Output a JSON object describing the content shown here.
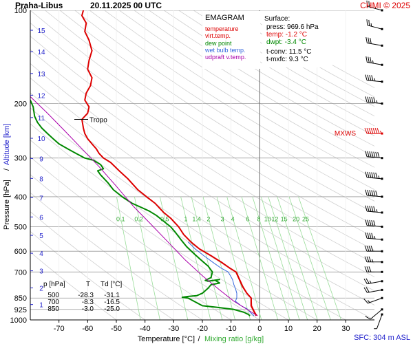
{
  "header": {
    "station": "Praha-Libus",
    "datetime": "20.11.2025 00 UTC",
    "credit": "CHMI © 2025"
  },
  "footer": {
    "sfc": "SFC: 304 m ASL"
  },
  "chart_data": {
    "type": "line",
    "title": "EMAGRAM",
    "xlabel": "Temperature [°C]",
    "xlabel_sep": "/",
    "xlabel2": "Mixing ratio [g/kg]",
    "ylabel": "Pressure [hPa]",
    "ylabel_sep": "/",
    "ylabel2": "Altitude [km]",
    "y_scale": "log",
    "xlim": [
      -80,
      40
    ],
    "ylim": [
      1000,
      100
    ],
    "x_ticks": [
      -70,
      -60,
      -50,
      -40,
      -30,
      -20,
      -10,
      0,
      10,
      20,
      30
    ],
    "pressure_ticks": [
      100,
      200,
      300,
      400,
      500,
      600,
      700,
      850,
      925,
      1000
    ],
    "altitude_ticks": [
      {
        "km": 1,
        "p": 892
      },
      {
        "km": 2,
        "p": 788
      },
      {
        "km": 3,
        "p": 694
      },
      {
        "km": 4,
        "p": 609
      },
      {
        "km": 5,
        "p": 533
      },
      {
        "km": 6,
        "p": 465
      },
      {
        "km": 7,
        "p": 403
      },
      {
        "km": 8,
        "p": 349
      },
      {
        "km": 9,
        "p": 301
      },
      {
        "km": 10,
        "p": 259
      },
      {
        "km": 11,
        "p": 222
      },
      {
        "km": 12,
        "p": 188
      },
      {
        "km": 13,
        "p": 160
      },
      {
        "km": 14,
        "p": 136
      },
      {
        "km": 15,
        "p": 116
      }
    ],
    "mixing_ratio_labels": [
      "0.1",
      "0.2",
      "0.5",
      "1",
      "1.4",
      "2",
      "3",
      "4",
      "6",
      "8",
      "10",
      "12",
      "15",
      "20",
      "25"
    ],
    "legend": [
      {
        "label": "temperature",
        "color": "#dd0000"
      },
      {
        "label": "virt.temp.",
        "color": "#dd0000"
      },
      {
        "label": "dew point",
        "color": "#008800"
      },
      {
        "label": "wet bulb temp.",
        "color": "#3366dd"
      },
      {
        "label": "udpraft v.temp.",
        "color": "#aa00aa"
      }
    ],
    "surface_box": {
      "title": "Surface:",
      "press": "press: 969.6 hPa",
      "temp": "temp: -1.2 °C",
      "dwpt": "dwpt: -3.4 °C",
      "tconv": "t-conv: 11.5 °C",
      "tmxfc": "t-mxfc: 9.3 °C"
    },
    "table": {
      "headers": [
        "p [hPa]",
        "T",
        "Td [°C]"
      ],
      "rows": [
        [
          "500",
          "-28.3",
          "-31.1"
        ],
        [
          "700",
          "-8.3",
          "-16.5"
        ],
        [
          "850",
          "-3.0",
          "-25.0"
        ]
      ]
    },
    "tropopause_label": "Tropo",
    "tropopause_p": 225,
    "mxws_label": "MXWS",
    "mxws_p": 250,
    "series": [
      {
        "name": "temperature",
        "color": "#dd0000",
        "points": [
          [
            -1.2,
            970
          ],
          [
            -1.5,
            960
          ],
          [
            -2.0,
            940
          ],
          [
            -3.0,
            900
          ],
          [
            -3.0,
            850
          ],
          [
            -4.5,
            820
          ],
          [
            -6.0,
            780
          ],
          [
            -8.3,
            700
          ],
          [
            -10.5,
            680
          ],
          [
            -13.5,
            650
          ],
          [
            -17.0,
            620
          ],
          [
            -21.0,
            590
          ],
          [
            -24.0,
            560
          ],
          [
            -26.5,
            530
          ],
          [
            -28.3,
            500
          ],
          [
            -31.0,
            470
          ],
          [
            -33.5,
            450
          ],
          [
            -36.5,
            420
          ],
          [
            -39.5,
            400
          ],
          [
            -42.5,
            380
          ],
          [
            -46.0,
            350
          ],
          [
            -49.0,
            330
          ],
          [
            -52.0,
            310
          ],
          [
            -54.5,
            300
          ],
          [
            -56.0,
            290
          ],
          [
            -57.0,
            280
          ],
          [
            -58.5,
            270
          ],
          [
            -60.0,
            260
          ],
          [
            -61.0,
            250
          ],
          [
            -61.5,
            240
          ],
          [
            -62.0,
            225
          ],
          [
            -60.0,
            215
          ],
          [
            -59.5,
            205
          ],
          [
            -61.0,
            195
          ],
          [
            -60.5,
            185
          ],
          [
            -59.0,
            175
          ],
          [
            -58.5,
            165
          ],
          [
            -60.0,
            155
          ],
          [
            -59.5,
            145
          ],
          [
            -58.5,
            135
          ],
          [
            -59.5,
            125
          ],
          [
            -61.0,
            117
          ],
          [
            -60.5,
            110
          ],
          [
            -62.0,
            104
          ],
          [
            -61.5,
            100
          ]
        ]
      },
      {
        "name": "virt.temp.",
        "color": "#dd0000",
        "points": [
          [
            -0.8,
            970
          ],
          [
            -1.2,
            960
          ],
          [
            -1.8,
            940
          ],
          [
            -2.8,
            900
          ],
          [
            -2.9,
            850
          ],
          [
            -4.4,
            820
          ],
          [
            -5.8,
            780
          ],
          [
            -8.1,
            700
          ],
          [
            -10.3,
            680
          ],
          [
            -13.3,
            650
          ],
          [
            -16.9,
            620
          ],
          [
            -20.9,
            590
          ],
          [
            -23.9,
            560
          ],
          [
            -26.4,
            530
          ],
          [
            -28.2,
            500
          ],
          [
            -30.9,
            470
          ],
          [
            -33.4,
            450
          ],
          [
            -36.4,
            420
          ],
          [
            -39.4,
            400
          ],
          [
            -42.4,
            380
          ],
          [
            -45.9,
            350
          ],
          [
            -48.9,
            330
          ],
          [
            -51.9,
            310
          ],
          [
            -54.4,
            300
          ]
        ]
      },
      {
        "name": "dew point",
        "color": "#008800",
        "points": [
          [
            -3.4,
            970
          ],
          [
            -4.0,
            960
          ],
          [
            -5.5,
            945
          ],
          [
            -9.0,
            925
          ],
          [
            -15.0,
            910
          ],
          [
            -20.0,
            900
          ],
          [
            -25.0,
            850
          ],
          [
            -27.0,
            845
          ],
          [
            -25.0,
            840
          ],
          [
            -22.0,
            835
          ],
          [
            -20.0,
            820
          ],
          [
            -18.0,
            790
          ],
          [
            -17.0,
            770
          ],
          [
            -14.0,
            760
          ],
          [
            -15.5,
            745
          ],
          [
            -14.0,
            740
          ],
          [
            -18.0,
            750
          ],
          [
            -19.0,
            745
          ],
          [
            -17.0,
            730
          ],
          [
            -16.5,
            700
          ],
          [
            -18.0,
            670
          ],
          [
            -20.5,
            640
          ],
          [
            -23.0,
            610
          ],
          [
            -25.5,
            580
          ],
          [
            -27.5,
            550
          ],
          [
            -29.5,
            520
          ],
          [
            -31.1,
            500
          ],
          [
            -33.5,
            480
          ],
          [
            -36.0,
            460
          ],
          [
            -38.5,
            445
          ],
          [
            -42.0,
            430
          ],
          [
            -44.5,
            420
          ],
          [
            -48.0,
            400
          ],
          [
            -51.0,
            380
          ],
          [
            -53.0,
            360
          ],
          [
            -55.5,
            340
          ],
          [
            -56.5,
            330
          ],
          [
            -54.5,
            325
          ],
          [
            -55.5,
            315
          ],
          [
            -58.0,
            305
          ],
          [
            -61.0,
            300
          ],
          [
            -64.0,
            290
          ],
          [
            -67.0,
            280
          ],
          [
            -70.0,
            270
          ],
          [
            -72.0,
            260
          ],
          [
            -74.0,
            250
          ],
          [
            -76.0,
            240
          ],
          [
            -77.5,
            230
          ],
          [
            -78.5,
            220
          ],
          [
            -79.0,
            205
          ],
          [
            -80.0,
            195
          ]
        ]
      },
      {
        "name": "wet bulb temp.",
        "color": "#3366dd",
        "points": [
          [
            -2.0,
            970
          ],
          [
            -3.0,
            950
          ],
          [
            -4.5,
            920
          ],
          [
            -6.5,
            900
          ],
          [
            -8.5,
            870
          ],
          [
            -8.0,
            850
          ],
          [
            -8.0,
            820
          ],
          [
            -8.5,
            790
          ],
          [
            -9.0,
            770
          ],
          [
            -9.5,
            740
          ],
          [
            -11.0,
            700
          ],
          [
            -13.5,
            680
          ],
          [
            -16.5,
            650
          ],
          [
            -19.5,
            620
          ],
          [
            -22.5,
            590
          ],
          [
            -25.0,
            560
          ]
        ]
      },
      {
        "name": "udpraft v.temp.",
        "color": "#aa00aa",
        "points": [
          [
            -0.8,
            970
          ],
          [
            -9.0,
            870
          ],
          [
            -14.0,
            800
          ],
          [
            -20.0,
            720
          ],
          [
            -26.0,
            640
          ],
          [
            -32.0,
            560
          ],
          [
            -38.0,
            490
          ],
          [
            -44.0,
            430
          ],
          [
            -50.0,
            370
          ],
          [
            -56.0,
            320
          ],
          [
            -62.0,
            280
          ],
          [
            -68.0,
            245
          ],
          [
            -74.0,
            215
          ],
          [
            -80.0,
            190
          ]
        ]
      }
    ],
    "wind_profile": [
      {
        "p": 960,
        "dir": 200,
        "kt": 5
      },
      {
        "p": 925,
        "dir": 230,
        "kt": 10
      },
      {
        "p": 850,
        "dir": 250,
        "kt": 15
      },
      {
        "p": 800,
        "dir": 260,
        "kt": 20
      },
      {
        "p": 750,
        "dir": 260,
        "kt": 25
      },
      {
        "p": 700,
        "dir": 270,
        "kt": 30
      },
      {
        "p": 650,
        "dir": 270,
        "kt": 35
      },
      {
        "p": 600,
        "dir": 270,
        "kt": 40
      },
      {
        "p": 550,
        "dir": 275,
        "kt": 45
      },
      {
        "p": 500,
        "dir": 275,
        "kt": 50
      },
      {
        "p": 450,
        "dir": 275,
        "kt": 55
      },
      {
        "p": 400,
        "dir": 275,
        "kt": 60
      },
      {
        "p": 350,
        "dir": 275,
        "kt": 65
      },
      {
        "p": 300,
        "dir": 275,
        "kt": 70
      },
      {
        "p": 250,
        "dir": 270,
        "kt": 75
      },
      {
        "p": 200,
        "dir": 275,
        "kt": 55
      },
      {
        "p": 170,
        "dir": 275,
        "kt": 45
      },
      {
        "p": 150,
        "dir": 280,
        "kt": 35
      },
      {
        "p": 130,
        "dir": 280,
        "kt": 30
      },
      {
        "p": 115,
        "dir": 285,
        "kt": 25
      },
      {
        "p": 100,
        "dir": 285,
        "kt": 20
      }
    ]
  }
}
